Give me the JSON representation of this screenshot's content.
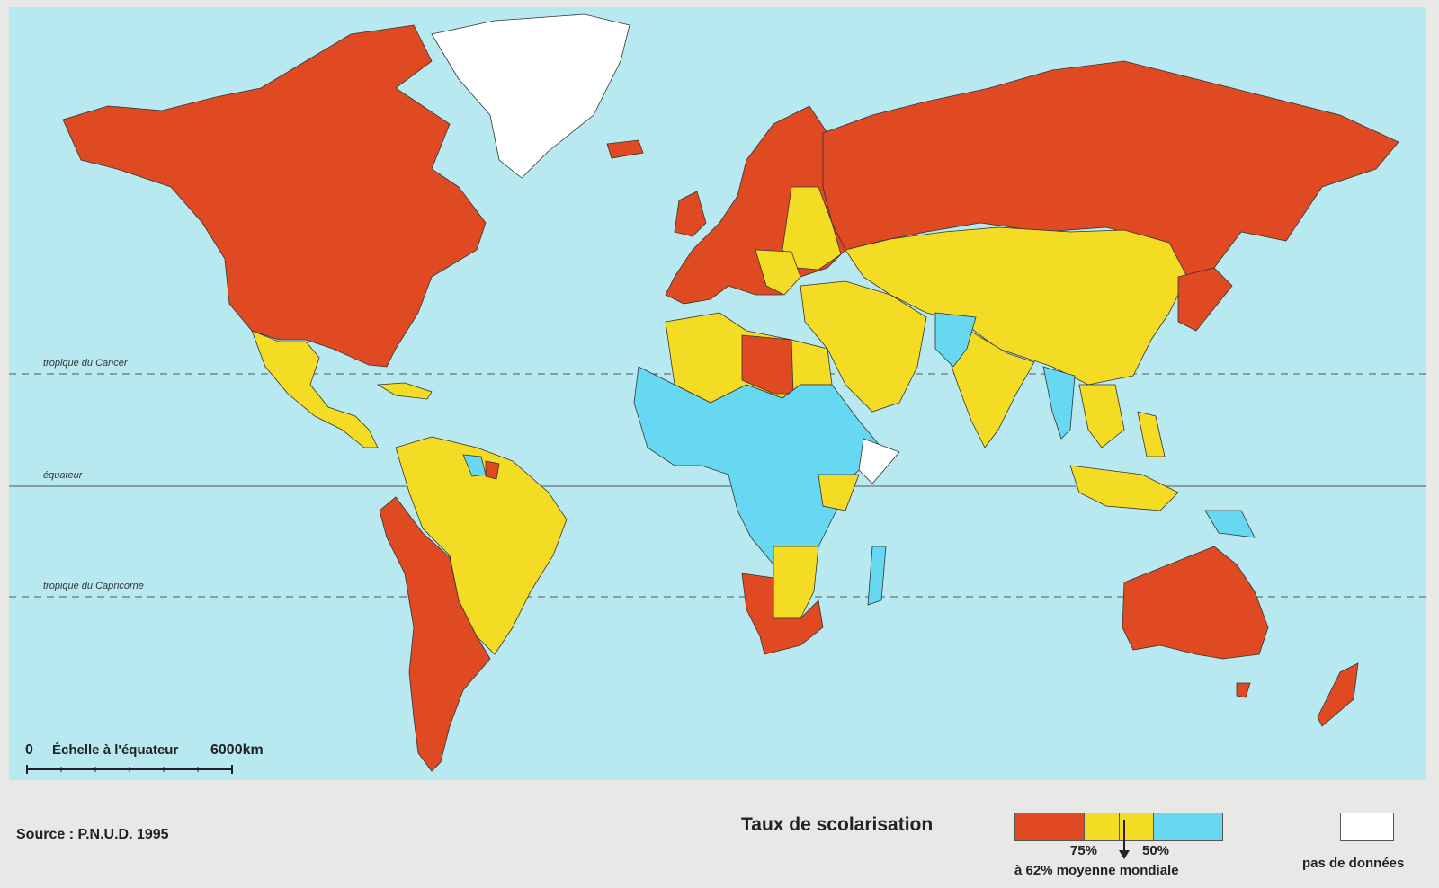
{
  "map": {
    "reference_lines": {
      "tropic_cancer": "tropique du Cancer",
      "equator": "équateur",
      "tropic_capricorn": "tropique du Capricorne"
    },
    "scale": {
      "start": "0",
      "label": "Échelle à l'équateur",
      "end": "6000km"
    },
    "colors": {
      "ocean": "#b8e9f0",
      "high": "#e04a22",
      "medium": "#f5dc24",
      "low": "#66d8f2",
      "no_data": "#ffffff"
    }
  },
  "footer": {
    "source": "Source : P.N.U.D. 1995",
    "legend": {
      "title": "Taux de scolarisation",
      "label_75": "75%",
      "label_50": "50%",
      "label_mean": "à 62% moyenne mondiale",
      "no_data_label": "pas de données"
    }
  }
}
